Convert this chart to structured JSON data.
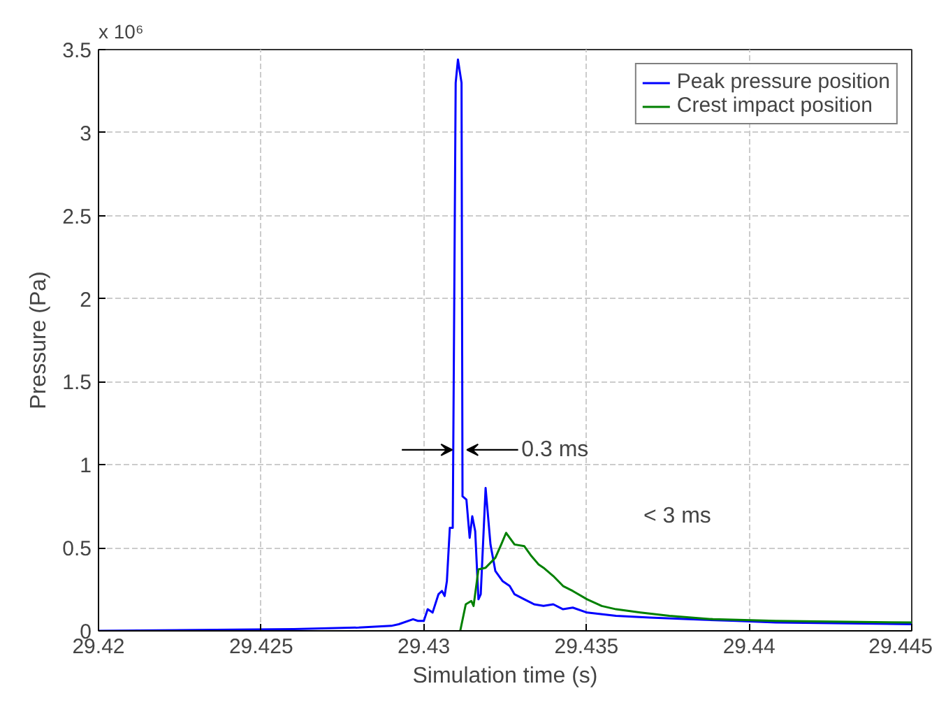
{
  "chart_data": {
    "type": "line",
    "xlabel": "Simulation time (s)",
    "ylabel": "Pressure (Pa)",
    "xlim": [
      29.42,
      29.445
    ],
    "xticks": [
      29.42,
      29.425,
      29.43,
      29.435,
      29.44,
      29.445
    ],
    "ylim": [
      0,
      3.5
    ],
    "yticks": [
      0,
      0.5,
      1,
      1.5,
      2,
      2.5,
      3,
      3.5
    ],
    "grid": true,
    "legend": "top right",
    "line_style": "solid",
    "marker": "none",
    "series": [
      {
        "name": "Peak pressure position",
        "color": "#0000ff",
        "x": [
          29.42,
          29.426,
          29.428,
          29.429,
          29.42923,
          29.42967,
          29.42982,
          29.43,
          29.43012,
          29.43027,
          29.43045,
          29.43056,
          29.43064,
          29.43071,
          29.4308,
          29.43089,
          29.43098,
          29.43105,
          29.43116,
          29.43119,
          29.43131,
          29.43141,
          29.43149,
          29.43158,
          29.43168,
          29.43175,
          29.4319,
          29.43205,
          29.4322,
          29.43242,
          29.43264,
          29.43279,
          29.43309,
          29.43339,
          29.43368,
          29.43398,
          29.43428,
          29.43458,
          29.43502,
          29.43591,
          29.43695,
          29.43814,
          29.43963,
          29.44082,
          29.445
        ],
        "values": [
          0,
          0.01,
          0.02,
          0.03,
          0.04,
          0.07,
          0.06,
          0.06,
          0.13,
          0.11,
          0.22,
          0.24,
          0.21,
          0.3,
          0.62,
          0.62,
          3.3,
          3.44,
          3.3,
          0.81,
          0.79,
          0.56,
          0.69,
          0.6,
          0.19,
          0.22,
          0.86,
          0.52,
          0.36,
          0.3,
          0.27,
          0.22,
          0.19,
          0.16,
          0.15,
          0.16,
          0.13,
          0.14,
          0.11,
          0.09,
          0.08,
          0.07,
          0.06,
          0.05,
          0.04
        ]
      },
      {
        "name": "Crest impact position",
        "color": "#008000",
        "x": [
          29.43112,
          29.43129,
          29.43146,
          29.43153,
          29.43168,
          29.4319,
          29.4322,
          29.43238,
          29.43253,
          29.43279,
          29.43309,
          29.43331,
          29.43353,
          29.43368,
          29.43398,
          29.43428,
          29.43458,
          29.43502,
          29.43547,
          29.43591,
          29.43666,
          29.43755,
          29.43889,
          29.44082,
          29.445
        ],
        "values": [
          0,
          0.16,
          0.18,
          0.15,
          0.37,
          0.38,
          0.44,
          0.52,
          0.59,
          0.52,
          0.51,
          0.45,
          0.4,
          0.38,
          0.33,
          0.27,
          0.24,
          0.19,
          0.15,
          0.13,
          0.11,
          0.09,
          0.07,
          0.06,
          0.05
        ]
      }
    ],
    "annotations": [
      "x 10⁶",
      {
        "text": "0.3 ms",
        "x": 29.43105,
        "y": 1.09
      },
      "< 3 ms"
    ]
  }
}
